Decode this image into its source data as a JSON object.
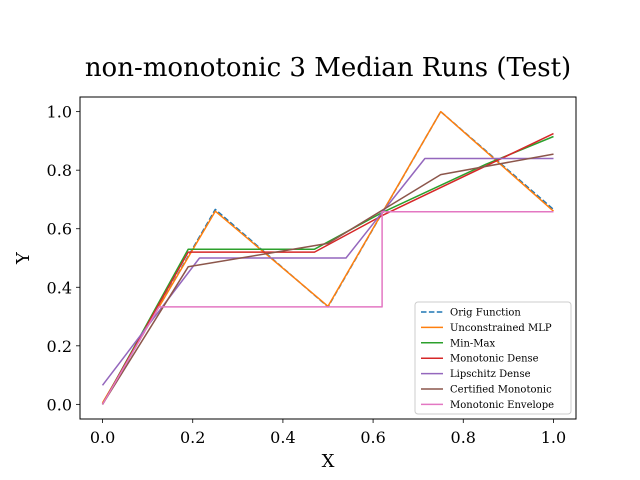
{
  "chart_data": {
    "type": "line",
    "title": "non-monotonic 3 Median Runs (Test)",
    "xlabel": "X",
    "ylabel": "Y",
    "xlim": [
      -0.05,
      1.05
    ],
    "ylim": [
      -0.05,
      1.05
    ],
    "xticks": [
      "0.0",
      "0.2",
      "0.4",
      "0.6",
      "0.8",
      "1.0"
    ],
    "yticks": [
      "0.0",
      "0.2",
      "0.4",
      "0.6",
      "0.8",
      "1.0"
    ],
    "grid": false,
    "legend_position": "lower-right",
    "series": [
      {
        "name": "Orig Function",
        "color": "#1f77b4",
        "dashed": true,
        "x": [
          0.0,
          0.25,
          0.5,
          0.75,
          1.0
        ],
        "y": [
          0.0,
          0.666,
          0.333,
          1.0,
          0.666
        ]
      },
      {
        "name": "Unconstrained MLP",
        "color": "#ff7f0e",
        "x": [
          0.0,
          0.25,
          0.5,
          0.75,
          1.0
        ],
        "y": [
          0.005,
          0.66,
          0.335,
          1.0,
          0.66
        ]
      },
      {
        "name": "Min-Max",
        "color": "#2ca02c",
        "x": [
          0.0,
          0.19,
          0.47,
          0.62,
          0.85,
          1.0
        ],
        "y": [
          0.0,
          0.53,
          0.53,
          0.655,
          0.82,
          0.915
        ]
      },
      {
        "name": "Monotonic Dense",
        "color": "#d62728",
        "x": [
          0.0,
          0.19,
          0.47,
          0.62,
          1.0
        ],
        "y": [
          0.0,
          0.52,
          0.52,
          0.645,
          0.925
        ]
      },
      {
        "name": "Lipschitz Dense",
        "color": "#9467bd",
        "x": [
          0.0,
          0.215,
          0.54,
          0.715,
          1.0
        ],
        "y": [
          0.065,
          0.5,
          0.5,
          0.84,
          0.84
        ]
      },
      {
        "name": "Certified Monotonic",
        "color": "#8c564b",
        "x": [
          0.0,
          0.19,
          0.5,
          0.75,
          1.0
        ],
        "y": [
          0.0,
          0.47,
          0.55,
          0.785,
          0.855
        ]
      },
      {
        "name": "Monotonic Envelope",
        "color": "#e377c2",
        "x": [
          0.0,
          0.125,
          0.62,
          0.62,
          1.0
        ],
        "y": [
          0.0,
          0.333,
          0.333,
          0.658,
          0.658
        ]
      }
    ]
  }
}
